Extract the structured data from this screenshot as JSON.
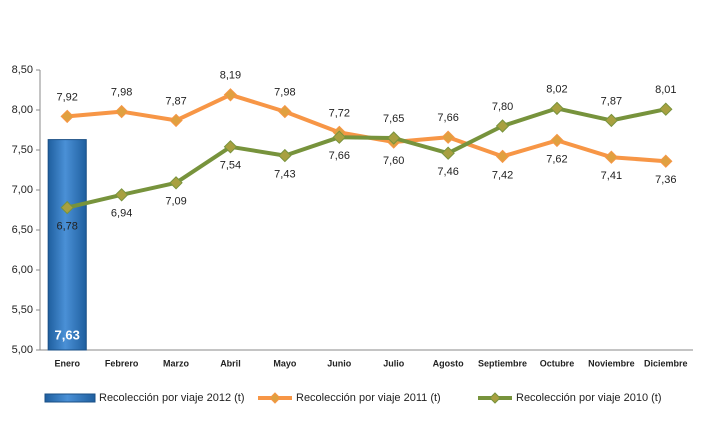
{
  "chart_data": {
    "type": "bar_line",
    "categories": [
      "Enero",
      "Febrero",
      "Marzo",
      "Abril",
      "Mayo",
      "Junio",
      "Julio",
      "Agosto",
      "Septiembre",
      "Octubre",
      "Noviembre",
      "Diciembre"
    ],
    "series": [
      {
        "name": "Recolección por viaje 2012 (t)",
        "type": "bar",
        "color": "#2e75b6",
        "values": [
          7.63,
          null,
          null,
          null,
          null,
          null,
          null,
          null,
          null,
          null,
          null,
          null
        ],
        "value_labels": [
          "7,63",
          null,
          null,
          null,
          null,
          null,
          null,
          null,
          null,
          null,
          null,
          null
        ]
      },
      {
        "name": "Recolección por viaje 2011 (t)",
        "type": "line",
        "color": "#f79646",
        "marker_color": "#e0a040",
        "values": [
          7.92,
          7.98,
          7.87,
          8.19,
          7.98,
          7.72,
          7.6,
          7.66,
          7.42,
          7.62,
          7.41,
          7.36
        ],
        "value_labels": [
          "7,92",
          "7,98",
          "7,87",
          "8,19",
          "7,98",
          "7,72",
          "7,60",
          "7,66",
          "7,42",
          "7,62",
          "7,41",
          "7,36"
        ]
      },
      {
        "name": "Recolección por viaje 2010 (t)",
        "type": "line",
        "color": "#77933c",
        "marker_color": "#a8a040",
        "values": [
          6.78,
          6.94,
          7.09,
          7.54,
          7.43,
          7.66,
          7.65,
          7.46,
          7.8,
          8.02,
          7.87,
          8.01
        ],
        "value_labels": [
          "6,78",
          "6,94",
          "7,09",
          "7,54",
          "7,43",
          "7,66",
          "7,65",
          "7,46",
          "7,80",
          "8,02",
          "7,87",
          "8,01"
        ]
      }
    ],
    "ylim": [
      5,
      8.5
    ],
    "yticks": [
      {
        "value": 5,
        "label": "5,00"
      },
      {
        "value": 5.5,
        "label": "5,50"
      },
      {
        "value": 6,
        "label": "6,00"
      },
      {
        "value": 6.5,
        "label": "6,50"
      },
      {
        "value": 7,
        "label": "7,00"
      },
      {
        "value": 7.5,
        "label": "7,50"
      },
      {
        "value": 8,
        "label": "8,00"
      },
      {
        "value": 8.5,
        "label": "8,50"
      }
    ],
    "grid": false,
    "legend": "bottom"
  }
}
